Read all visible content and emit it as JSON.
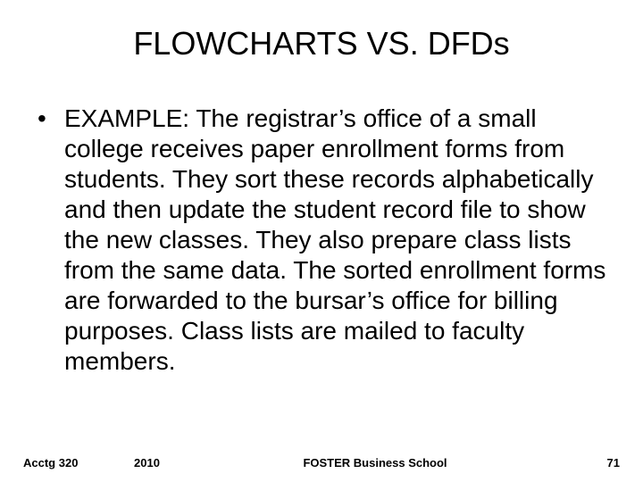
{
  "slide": {
    "title": "FLOWCHARTS VS. DFDs",
    "bullet_marker": "•",
    "bullet_text": "EXAMPLE: The registrar’s office of a small college receives paper enrollment forms from students. They sort these records alphabetically and then update the student record file to show the new classes. They also prepare class lists from the same data. The sorted enrollment forms are forwarded to the bursar’s office for billing purposes. Class lists are mailed to faculty members."
  },
  "footer": {
    "course": "Acctg 320",
    "year": "2010",
    "school": "FOSTER Business School",
    "page": "71"
  },
  "style": {
    "background_color": "#ffffff",
    "text_color": "#000000",
    "title_fontsize": 36,
    "body_fontsize": 28,
    "footer_fontsize": 13,
    "font_family": "Arial"
  }
}
